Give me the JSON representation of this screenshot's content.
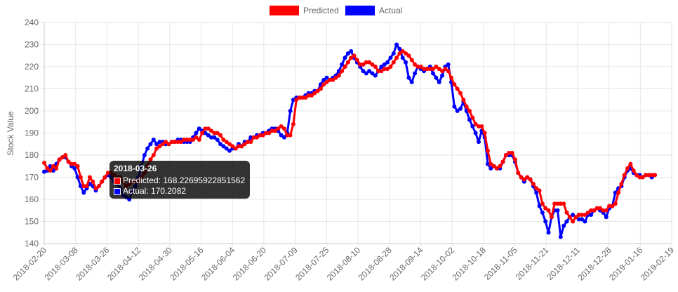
{
  "chart_data": {
    "type": "line",
    "title": "",
    "xlabel": "",
    "ylabel": "Stock Value",
    "ylim": [
      140,
      240
    ],
    "yticks": [
      "140",
      "150",
      "160",
      "170",
      "180",
      "190",
      "200",
      "210",
      "220",
      "230",
      "240"
    ],
    "xticks": [
      "2018-02-20",
      "2018-03-08",
      "2018-03-26",
      "2018-04-12",
      "2018-04-30",
      "2018-05-16",
      "2018-06-04",
      "2018-06-20",
      "2018-07-09",
      "2018-07-25",
      "2018-08-10",
      "2018-08-28",
      "2018-09-14",
      "2018-10-02",
      "2018-10-18",
      "2018-11-05",
      "2018-11-21",
      "2018-12-11",
      "2018-12-28",
      "2019-01-16",
      "2019-02-19"
    ],
    "grid": true,
    "legend_position": "top-center",
    "series": [
      {
        "name": "Predicted",
        "color": "#ff0000",
        "values": [
          176.5,
          174,
          173,
          175,
          174,
          178,
          179,
          180,
          177,
          176,
          176,
          175,
          170,
          166,
          166,
          170,
          168,
          165,
          166,
          168,
          170,
          172,
          172,
          171,
          170,
          170,
          168,
          166,
          167,
          168,
          168,
          168,
          170,
          172,
          175,
          178,
          180,
          183,
          184,
          185,
          186,
          185,
          186,
          186,
          186,
          186,
          187,
          187,
          187,
          187,
          188,
          187,
          190,
          192,
          192,
          191,
          190,
          190,
          189,
          187,
          186,
          185,
          184,
          183,
          184,
          184,
          185,
          186,
          186,
          188,
          188,
          189,
          189,
          190,
          190,
          191,
          191,
          192,
          193,
          192,
          189,
          189,
          194,
          205,
          206,
          206,
          206,
          207,
          207,
          208,
          209,
          210,
          212,
          213,
          214,
          214,
          215,
          216,
          218,
          220,
          222,
          224,
          225,
          223,
          221,
          221,
          222,
          222,
          221,
          220,
          218,
          218,
          219,
          219,
          220,
          222,
          224,
          226,
          227,
          226,
          225,
          223,
          221,
          220,
          220,
          219,
          219,
          219,
          219,
          220,
          219,
          218,
          219,
          218,
          215,
          212,
          210,
          208,
          205,
          202,
          200,
          197,
          194,
          193,
          193,
          190,
          182,
          176,
          175,
          174,
          175,
          177,
          180,
          181,
          181,
          178,
          172,
          170,
          169,
          170,
          169,
          167,
          165,
          164,
          158,
          156,
          155,
          152,
          158,
          158,
          158,
          158,
          154,
          152,
          150,
          152,
          153,
          153,
          153,
          154,
          155,
          155,
          156,
          156,
          155,
          155,
          157,
          157,
          158,
          163,
          167,
          171,
          174,
          176,
          173,
          171,
          170,
          170,
          171,
          171,
          171,
          171
        ]
      },
      {
        "name": "Actual",
        "color": "#0000ff",
        "values": [
          172.5,
          173,
          175,
          173,
          176,
          178,
          179,
          179,
          177,
          175,
          174,
          170,
          166,
          163,
          165,
          167,
          166,
          164,
          166,
          168,
          170,
          171,
          170,
          168,
          167,
          165,
          162,
          161,
          160,
          164,
          166,
          170,
          175,
          180,
          183,
          185,
          187,
          185,
          186,
          186,
          185,
          185,
          186,
          186,
          187,
          187,
          186,
          186,
          186,
          188,
          190,
          192,
          191,
          190,
          189,
          188,
          188,
          187,
          185,
          184,
          183,
          182,
          183,
          183,
          185,
          184,
          186,
          186,
          188,
          188,
          189,
          189,
          190,
          190,
          191,
          192,
          192,
          191,
          189,
          188,
          190,
          200,
          205,
          206,
          206,
          206,
          207,
          208,
          208,
          209,
          209,
          212,
          214,
          215,
          214,
          215,
          216,
          218,
          221,
          224,
          226,
          227,
          224,
          222,
          220,
          218,
          217,
          218,
          217,
          216,
          218,
          220,
          221,
          222,
          224,
          226,
          230,
          228,
          224,
          222,
          215,
          213,
          217,
          220,
          219,
          218,
          219,
          220,
          217,
          215,
          213,
          216,
          220,
          221,
          213,
          202,
          200,
          201,
          204,
          200,
          196,
          193,
          190,
          186,
          191,
          188,
          176,
          174,
          175,
          174,
          174,
          177,
          180,
          180,
          180,
          177,
          172,
          170,
          168,
          170,
          169,
          166,
          163,
          157,
          154,
          150,
          145,
          152,
          155,
          155,
          143,
          148,
          150,
          152,
          153,
          152,
          151,
          151,
          150,
          153,
          153,
          155,
          156,
          155,
          154,
          152,
          156,
          157,
          163,
          165,
          166,
          170,
          173,
          174,
          172,
          171,
          171,
          170,
          171,
          171,
          170,
          171
        ]
      }
    ],
    "tooltip": {
      "date": "2018-03-26",
      "predicted_label": "Predicted: 168.22695922851562",
      "actual_label": "Actual: 170.2082"
    }
  }
}
